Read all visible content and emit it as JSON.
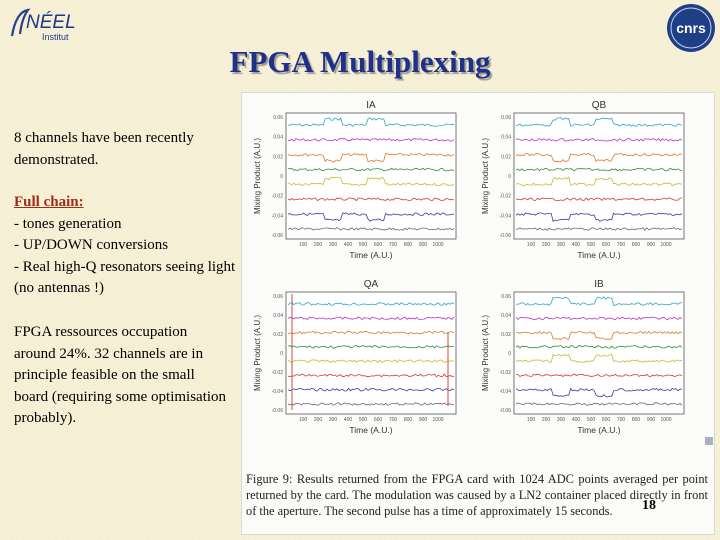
{
  "header": {
    "neel_logo_text": "NÉEL",
    "neel_logo_sub": "Institut",
    "cnrs_logo_text": "cnrs"
  },
  "title": "FPGA Multiplexing",
  "intro_text": "8 channels have been recently demonstrated.",
  "full_chain": {
    "heading": "Full chain:",
    "items": [
      "- tones generation",
      "- UP/DOWN conversions",
      "- Real high-Q resonators seeing light (no antennas !)"
    ]
  },
  "fpga_text": "FPGA ressources occupation around 24%. 32 channels are in principle feasible on the small board (requiring some optimisation probably).",
  "figure": {
    "caption": "Figure 9: Results returned from the FPGA card with 1024 ADC points averaged per point returned by the card. The modulation was caused by a LN2 container placed directly in front of the aperture. The second pulse has a time of approximately 15 seconds.",
    "panels": [
      {
        "title": "IA",
        "xlabel": "Time (A.U.)",
        "ylabel": "Mixing Product (A.U.)",
        "yticks": [
          "0.06",
          "0.04",
          "0.02",
          "0",
          "-0.02",
          "-0.04",
          "-0.06"
        ],
        "xticks": [
          "100",
          "200",
          "300",
          "400",
          "500",
          "600",
          "700",
          "800",
          "900",
          "1000"
        ]
      },
      {
        "title": "QB",
        "xlabel": "Time (A.U.)",
        "ylabel": "Mixing Product (A.U.)",
        "yticks": [
          "0.06",
          "0.04",
          "0.02",
          "0",
          "-0.02",
          "-0.04",
          "-0.06"
        ],
        "xticks": [
          "100",
          "200",
          "300",
          "400",
          "500",
          "600",
          "700",
          "800",
          "900",
          "1000"
        ]
      },
      {
        "title": "QA",
        "xlabel": "Time (A.U.)",
        "ylabel": "Mixing Product (A.U.)",
        "yticks": [
          "0.06",
          "0.04",
          "0.02",
          "0",
          "-0.02",
          "-0.04",
          "-0.06"
        ],
        "xticks": [
          "100",
          "200",
          "300",
          "400",
          "500",
          "600",
          "700",
          "800",
          "900",
          "1000"
        ]
      },
      {
        "title": "IB",
        "xlabel": "Time (A.U.)",
        "ylabel": "Mixing Product (A.U.)",
        "yticks": [
          "0.06",
          "0.04",
          "0.02",
          "0",
          "-0.02",
          "-0.04",
          "-0.06"
        ],
        "xticks": [
          "100",
          "200",
          "300",
          "400",
          "500",
          "600",
          "700",
          "800",
          "900",
          "1000"
        ]
      }
    ]
  },
  "page_number": "18",
  "colors": {
    "title": "#1f2f8c",
    "heading": "#a32b1a",
    "background": "#f7f1d6"
  }
}
